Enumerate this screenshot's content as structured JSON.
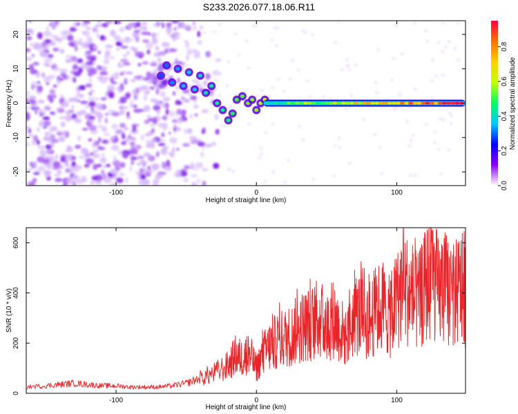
{
  "title": "S233.2026.077.18.06.R11",
  "chart_data": [
    {
      "type": "heatmap",
      "xlabel": "Height of straight line (km)",
      "ylabel": "Frequency (Hz)",
      "xlim": [
        -164,
        149
      ],
      "ylim": [
        -24,
        24
      ],
      "xticks": [
        -100,
        0,
        100
      ],
      "yticks": [
        -20,
        -10,
        0,
        10,
        20
      ],
      "xtick_labels": [
        "-100",
        "0",
        "100"
      ],
      "ytick_labels": [
        "-20",
        "-10",
        "0",
        "10",
        "20"
      ],
      "colorbar": {
        "label": "Normalized spectral amplitude",
        "range": [
          0,
          0.95
        ],
        "ticks": [
          0.0,
          0.2,
          0.4,
          0.6,
          0.8
        ],
        "tick_labels": [
          "0.0",
          "0.2",
          "0.4",
          "0.6",
          "0.8"
        ],
        "colormap": [
          "#ffffff",
          "#8a00ff",
          "#0000ff",
          "#00c8ff",
          "#00ff60",
          "#c0ff00",
          "#ffd000",
          "#ff7000",
          "#ff0040"
        ]
      },
      "features": {
        "noise_region_x": [
          -164,
          -65
        ],
        "signal_track_x": [
          -30,
          149
        ],
        "signal_frequency_hz": 0
      }
    },
    {
      "type": "line",
      "xlabel": "Height of straight line (km)",
      "ylabel": "SNR (10 * v/v)",
      "xlim": [
        -164,
        149
      ],
      "ylim": [
        0,
        660
      ],
      "xticks": [
        -100,
        0,
        100
      ],
      "yticks": [
        0,
        200,
        400,
        600
      ],
      "xtick_labels": [
        "-100",
        "0",
        "100"
      ],
      "ytick_labels": [
        "0",
        "200",
        "400",
        "600"
      ],
      "line_color": "#e8262a",
      "series": [
        {
          "x": [
            -164,
            -150,
            -140,
            -130,
            -120,
            -110,
            -100,
            -90,
            -80,
            -70,
            -60,
            -50,
            -40,
            -30,
            -20,
            -15,
            -10,
            -5,
            0,
            5,
            10,
            15,
            20,
            25,
            30,
            35,
            40,
            45,
            50,
            55,
            60,
            65,
            70,
            75,
            80,
            85,
            90,
            95,
            100,
            105,
            110,
            115,
            120,
            125,
            130,
            135,
            140,
            145,
            149
          ],
          "y": [
            25,
            30,
            35,
            40,
            35,
            30,
            30,
            25,
            25,
            25,
            30,
            40,
            60,
            80,
            110,
            150,
            140,
            160,
            100,
            160,
            190,
            210,
            220,
            230,
            260,
            270,
            280,
            300,
            260,
            300,
            250,
            220,
            320,
            310,
            280,
            330,
            350,
            300,
            370,
            430,
            390,
            350,
            420,
            480,
            400,
            420,
            380,
            420,
            400
          ]
        }
      ]
    }
  ]
}
